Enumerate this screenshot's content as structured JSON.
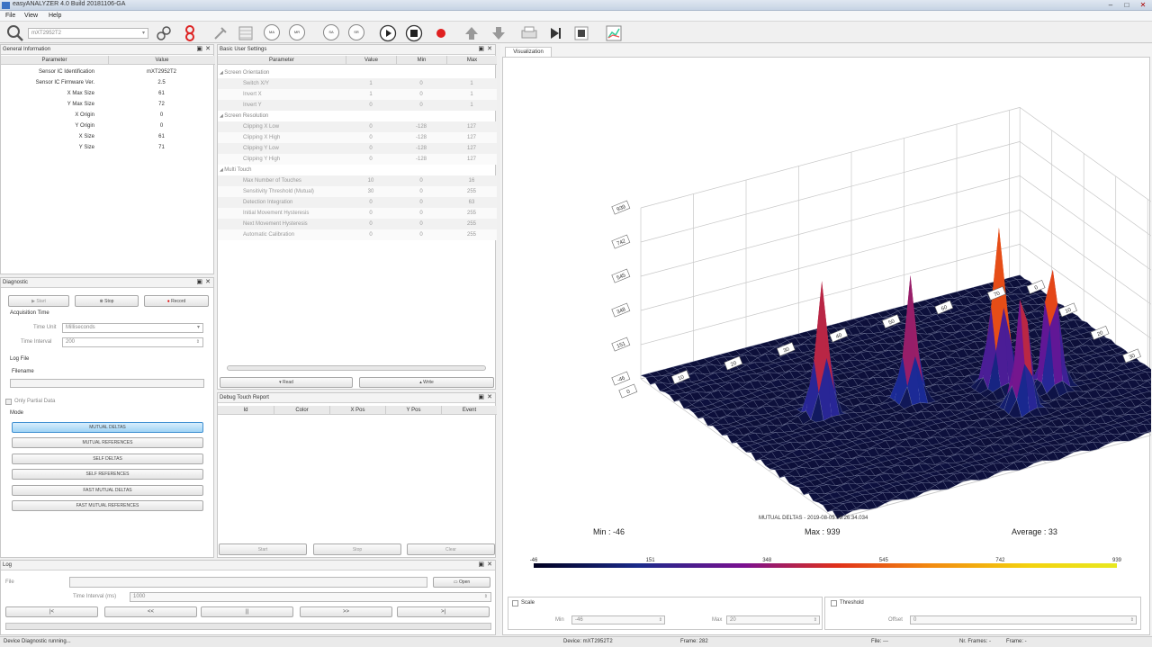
{
  "window": {
    "title": "easyANALYZER 4.0 Build 20181106-GA"
  },
  "menu": [
    "File",
    "View",
    "Help"
  ],
  "toolbar": {
    "device_select": "mXT2952T2",
    "round_buttons": [
      "MA",
      "MR",
      "SA",
      "SR"
    ]
  },
  "general_info": {
    "title": "General Information",
    "headers": [
      "Parameter",
      "Value"
    ],
    "rows": [
      [
        "Sensor IC Identification",
        "mXT2952T2"
      ],
      [
        "Sensor IC Firmware Ver.",
        "2.5"
      ],
      [
        "X Max Size",
        "61"
      ],
      [
        "Y Max Size",
        "72"
      ],
      [
        "X Origin",
        "0"
      ],
      [
        "Y Origin",
        "0"
      ],
      [
        "X Size",
        "61"
      ],
      [
        "Y Size",
        "71"
      ]
    ]
  },
  "basic_settings": {
    "title": "Basic User Settings",
    "headers": [
      "Parameter",
      "Value",
      "Min",
      "Max"
    ],
    "groups": [
      {
        "name": "Screen Orientation",
        "rows": [
          [
            "Switch X/Y",
            "1",
            "0",
            "1"
          ],
          [
            "Invert X",
            "1",
            "0",
            "1"
          ],
          [
            "Invert Y",
            "0",
            "0",
            "1"
          ]
        ]
      },
      {
        "name": "Screen Resolution",
        "rows": [
          [
            "Clipping X Low",
            "0",
            "-128",
            "127"
          ],
          [
            "Clipping X High",
            "0",
            "-128",
            "127"
          ],
          [
            "Clipping Y Low",
            "0",
            "-128",
            "127"
          ],
          [
            "Clipping Y High",
            "0",
            "-128",
            "127"
          ]
        ]
      },
      {
        "name": "Multi Touch",
        "rows": [
          [
            "Max Number of Touches",
            "10",
            "0",
            "16"
          ],
          [
            "Sensitivity Threshold (Mutual)",
            "30",
            "0",
            "255"
          ],
          [
            "Detection Integration",
            "0",
            "0",
            "63"
          ],
          [
            "Initial Movement Hysteresis",
            "0",
            "0",
            "255"
          ],
          [
            "Next Movement Hysteresis",
            "0",
            "0",
            "255"
          ],
          [
            "Automatic Calibration",
            "0",
            "0",
            "255"
          ]
        ]
      }
    ],
    "read": "Read",
    "write": "Write"
  },
  "diagnostic": {
    "title": "Diagnostic",
    "start": "Start",
    "stop": "Stop",
    "record": "Record",
    "acq_time": "Acquisition Time",
    "time_unit_label": "Time Unit",
    "time_unit_value": "Milliseconds",
    "time_interval_label": "Time Interval",
    "time_interval_value": "200",
    "log_file": "Log File",
    "filename": "Filename",
    "only_partial": "Only Partial Data",
    "mode": "Mode",
    "modes": [
      "MUTUAL DELTAS",
      "MUTUAL REFERENCES",
      "SELF DELTAS",
      "SELF REFERENCES",
      "FAST MUTUAL DELTAS",
      "FAST MUTUAL REFERENCES"
    ]
  },
  "debug_touch": {
    "title": "Debug Touch Report",
    "headers": [
      "Id",
      "Color",
      "X Pos",
      "Y Pos",
      "Event"
    ],
    "start": "Start",
    "stop": "Stop",
    "clear": "Clear"
  },
  "log": {
    "title": "Log",
    "file_label": "File",
    "open": "Open",
    "interval_label": "Time Interval (ms)",
    "interval_value": "1000",
    "nav": [
      "|<",
      "<<",
      "||",
      ">>",
      ">|"
    ]
  },
  "visualization": {
    "tab": "Visualization",
    "caption": "MUTUAL DELTAS - 2019-08-05 09:26:34.034",
    "min": "Min : -46",
    "max": "Max : 939",
    "avg": "Average : 33",
    "colorbar_ticks": [
      "-46",
      "151",
      "348",
      "545",
      "742",
      "939"
    ],
    "z_ticks_left": [
      "939",
      "742",
      "545",
      "348",
      "151",
      "-46"
    ],
    "z_ticks_right": [
      "939",
      "742",
      "545",
      "348",
      "151",
      "-46"
    ],
    "x_ticks": [
      "0",
      "10",
      "20",
      "30",
      "40",
      "50",
      "60"
    ],
    "y_ticks": [
      "0",
      "10",
      "20",
      "30",
      "40",
      "50",
      "60",
      "70"
    ],
    "scale_label": "Scale",
    "min_label": "Min",
    "min_value": "-46",
    "max_label": "Max",
    "max_value": "20",
    "threshold_label": "Threshold",
    "offset_label": "Offset",
    "offset_value": "0"
  },
  "status": {
    "left": "Device Diagnostic running...",
    "device": "Device: mXT2952T2",
    "frames": "Frame: 282",
    "file": "File: ---",
    "nr_frames": "Nr. Frames: -",
    "frame": "Frame: -"
  }
}
